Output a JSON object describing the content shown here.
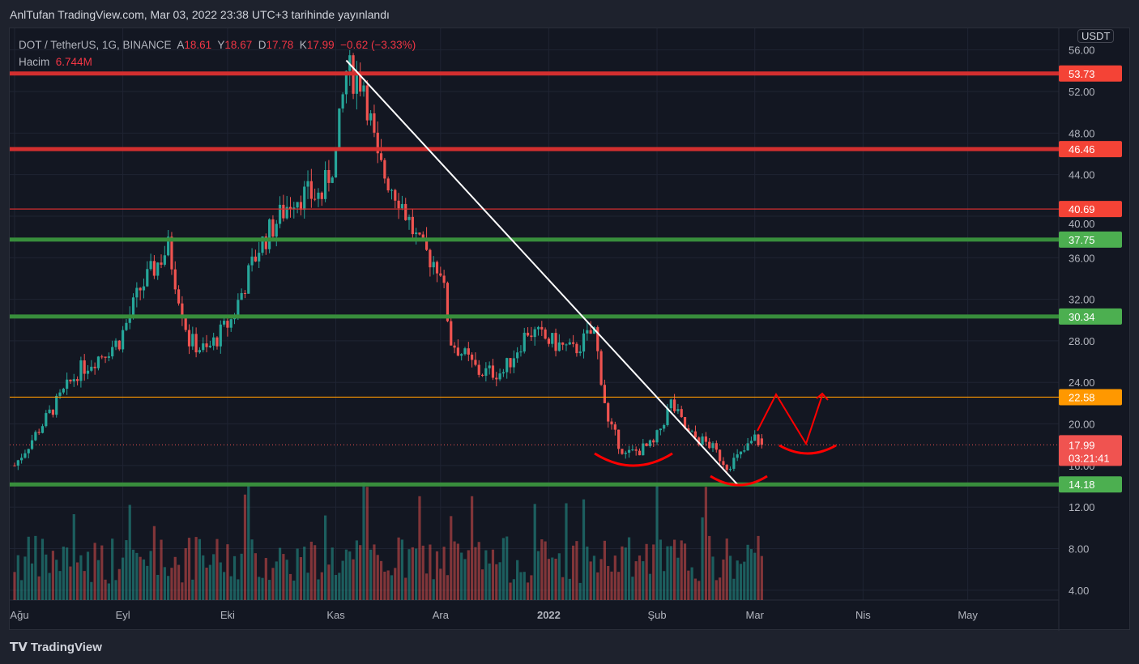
{
  "published": "AnlTufan TradingView.com, Mar 03, 2022 23:38 UTC+3 tarihinde yayınlandı",
  "legend": {
    "symbol": "DOT / TetherUS, 1G, BINANCE",
    "o_label": "A",
    "o": "18.61",
    "h_label": "Y",
    "h": "18.67",
    "l_label": "D",
    "l": "17.78",
    "c_label": "K",
    "c": "17.99",
    "change": "−0.62 (−3.33%)",
    "volume_label": "Hacim",
    "volume": "6.744M"
  },
  "currency": "USDT",
  "countdown": "03:21:41",
  "logo": "TradingView",
  "colors": {
    "up": "#26a69a",
    "down": "#ef5350",
    "red_level": "#d32f2f",
    "green_level": "#388e3c",
    "orange_level": "#ff9800"
  },
  "chart_data": {
    "type": "candlestick",
    "ylim": [
      2,
      58
    ],
    "y_ticks": [
      "56.00",
      "52.00",
      "48.00",
      "44.00",
      "40.00",
      "36.00",
      "32.00",
      "28.00",
      "24.00",
      "20.00",
      "16.00",
      "12.00",
      "8.00",
      "4.00"
    ],
    "x_ticks": [
      "Ağu",
      "Eyl",
      "Eki",
      "Kas",
      "Ara",
      "2022",
      "Şub",
      "Mar",
      "Nis",
      "May"
    ],
    "x_tick_days": [
      0,
      31,
      61,
      92,
      122,
      153,
      184,
      212,
      243,
      273
    ],
    "last_price": 17.99,
    "levels": [
      {
        "price": 53.73,
        "label": "53.73",
        "color": "red",
        "weight": "thick"
      },
      {
        "price": 46.46,
        "label": "46.46",
        "color": "red",
        "weight": "thick"
      },
      {
        "price": 40.69,
        "label": "40.69",
        "color": "red",
        "weight": "thin"
      },
      {
        "price": 37.75,
        "label": "37.75",
        "color": "green",
        "weight": "thick"
      },
      {
        "price": 30.34,
        "label": "30.34",
        "color": "green",
        "weight": "thick"
      },
      {
        "price": 22.58,
        "label": "22.58",
        "color": "orange",
        "weight": "thin"
      },
      {
        "price": 14.18,
        "label": "14.18",
        "color": "green",
        "weight": "thick"
      }
    ],
    "price_path": [
      [
        0,
        16
      ],
      [
        10,
        21
      ],
      [
        18,
        25
      ],
      [
        30,
        28
      ],
      [
        36,
        33
      ],
      [
        40,
        35
      ],
      [
        44,
        37
      ],
      [
        50,
        28
      ],
      [
        55,
        27
      ],
      [
        62,
        30
      ],
      [
        70,
        37
      ],
      [
        80,
        42
      ],
      [
        88,
        42
      ],
      [
        92,
        46
      ],
      [
        95,
        54
      ],
      [
        100,
        53
      ],
      [
        104,
        45
      ],
      [
        110,
        42
      ],
      [
        116,
        37
      ],
      [
        122,
        35
      ],
      [
        125,
        28
      ],
      [
        133,
        25
      ],
      [
        140,
        25
      ],
      [
        147,
        29
      ],
      [
        153,
        28
      ],
      [
        160,
        27
      ],
      [
        166,
        29
      ],
      [
        170,
        20
      ],
      [
        175,
        17
      ],
      [
        183,
        18
      ],
      [
        188,
        22
      ],
      [
        193,
        19
      ],
      [
        199,
        18
      ],
      [
        204,
        16
      ],
      [
        208,
        17
      ],
      [
        212,
        18.6
      ],
      [
        214,
        18
      ]
    ],
    "trendline": [
      [
        95,
        55
      ],
      [
        207,
        14.18
      ]
    ]
  }
}
